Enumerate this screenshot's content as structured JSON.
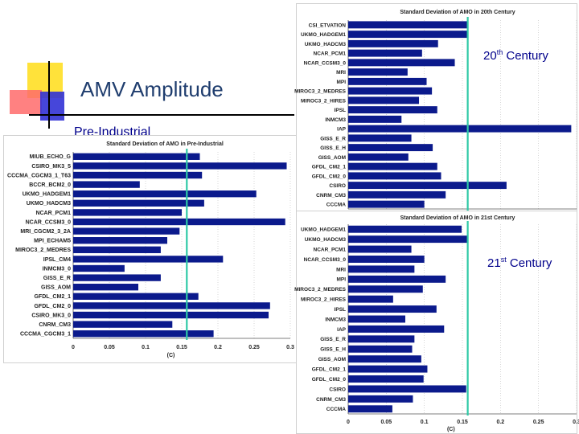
{
  "slide": {
    "title": "AMV Amplitude",
    "labels": {
      "pre_industrial": "Pre-Industrial",
      "c20_num": "20",
      "c20_sup": "th",
      "c20_word": " Century",
      "c21_num": "21",
      "c21_sup": "st",
      "c21_word": " Century"
    },
    "colors": {
      "bar": "#0b1a8c",
      "marker_line": "#2ec9a6",
      "label_text": "#00008b",
      "deco_yellow": "#ffe23a",
      "deco_red": "#ff5a5a",
      "deco_blue": "#3535d8"
    }
  },
  "chart_data": [
    {
      "type": "bar",
      "orientation": "horizontal",
      "title": "Standard Deviation of AMO in Pre-Industrial",
      "xlabel": "(C)",
      "xlim": [
        0,
        0.3
      ],
      "xticks": [
        "0",
        "0.05",
        "0.1",
        "0.15",
        "0.2",
        "0.25",
        "0.3"
      ],
      "marker_x": 0.157,
      "categories": [
        "MIUB_ECHO_G",
        "CSIRO_MK3_5",
        "CCCMA_CGCM3_1_T63",
        "BCCR_BCM2_0",
        "UKMO_HADGEM1",
        "UKMO_HADCM3",
        "NCAR_PCM1",
        "NCAR_CCSM3_0",
        "MRI_CGCM2_3_2A",
        "MPI_ECHAM5",
        "MIROC3_2_MEDRES",
        "IPSL_CM4",
        "INMCM3_0",
        "GISS_E_R",
        "GISS_AOM",
        "GFDL_CM2_1",
        "GFDL_CM2_0",
        "CSIRO_MK3_0",
        "CNRM_CM3",
        "CCCMA_CGCM3_1"
      ],
      "values": [
        0.175,
        0.295,
        0.178,
        0.092,
        0.253,
        0.181,
        0.15,
        0.293,
        0.147,
        0.13,
        0.121,
        0.207,
        0.071,
        0.121,
        0.09,
        0.173,
        0.272,
        0.27,
        0.137,
        0.194
      ]
    },
    {
      "type": "bar",
      "orientation": "horizontal",
      "title": "Standard Deviation of AMO in 20th Century",
      "xlabel": "",
      "xlim": [
        0,
        0.3
      ],
      "xticks": [],
      "marker_x": 0.157,
      "categories": [
        "CSI_ETVATION",
        "UKMO_HADGEM1",
        "UKMO_HADCM3",
        "NCAR_PCM1",
        "NCAR_CCSM3_0",
        "MRI",
        "MPI",
        "MIROC3_2_MEDRES",
        "MIROC3_2_HIRES",
        "IPSL",
        "INMCM3",
        "IAP",
        "GISS_E_R",
        "GISS_E_H",
        "GISS_AOM",
        "GFDL_CM2_1",
        "GFDL_CM2_0",
        "CSIRO",
        "CNRM_CM3",
        "CCCMA"
      ],
      "values": [
        0.156,
        0.156,
        0.118,
        0.097,
        0.14,
        0.078,
        0.103,
        0.11,
        0.093,
        0.117,
        0.07,
        0.293,
        0.083,
        0.111,
        0.079,
        0.117,
        0.122,
        0.208,
        0.128,
        0.1
      ]
    },
    {
      "type": "bar",
      "orientation": "horizontal",
      "title": "Standard Deviation of AMO in 21st Century",
      "xlabel": "(C)",
      "xlim": [
        0,
        0.3
      ],
      "xticks": [
        "0",
        "0.05",
        "0.1",
        "0.15",
        "0.2",
        "0.25",
        "0.3"
      ],
      "marker_x": 0.157,
      "categories": [
        "UKMO_HADGEM1",
        "UKMO_HADCM3",
        "NCAR_PCM1",
        "NCAR_CCSM3_0",
        "MRI",
        "MPI",
        "MIROC3_2_MEDRES",
        "MIROC3_2_HIRES",
        "IPSL",
        "INMCM3",
        "IAP",
        "GISS_E_R",
        "GISS_E_H",
        "GISS_AOM",
        "GFDL_CM2_1",
        "GFDL_CM2_0",
        "CSIRO",
        "CNRM_CM3",
        "CCCMA"
      ],
      "values": [
        0.149,
        0.157,
        0.083,
        0.1,
        0.087,
        0.128,
        0.098,
        0.059,
        0.116,
        0.075,
        0.126,
        0.087,
        0.084,
        0.096,
        0.104,
        0.099,
        0.155,
        0.085,
        0.058
      ]
    }
  ]
}
